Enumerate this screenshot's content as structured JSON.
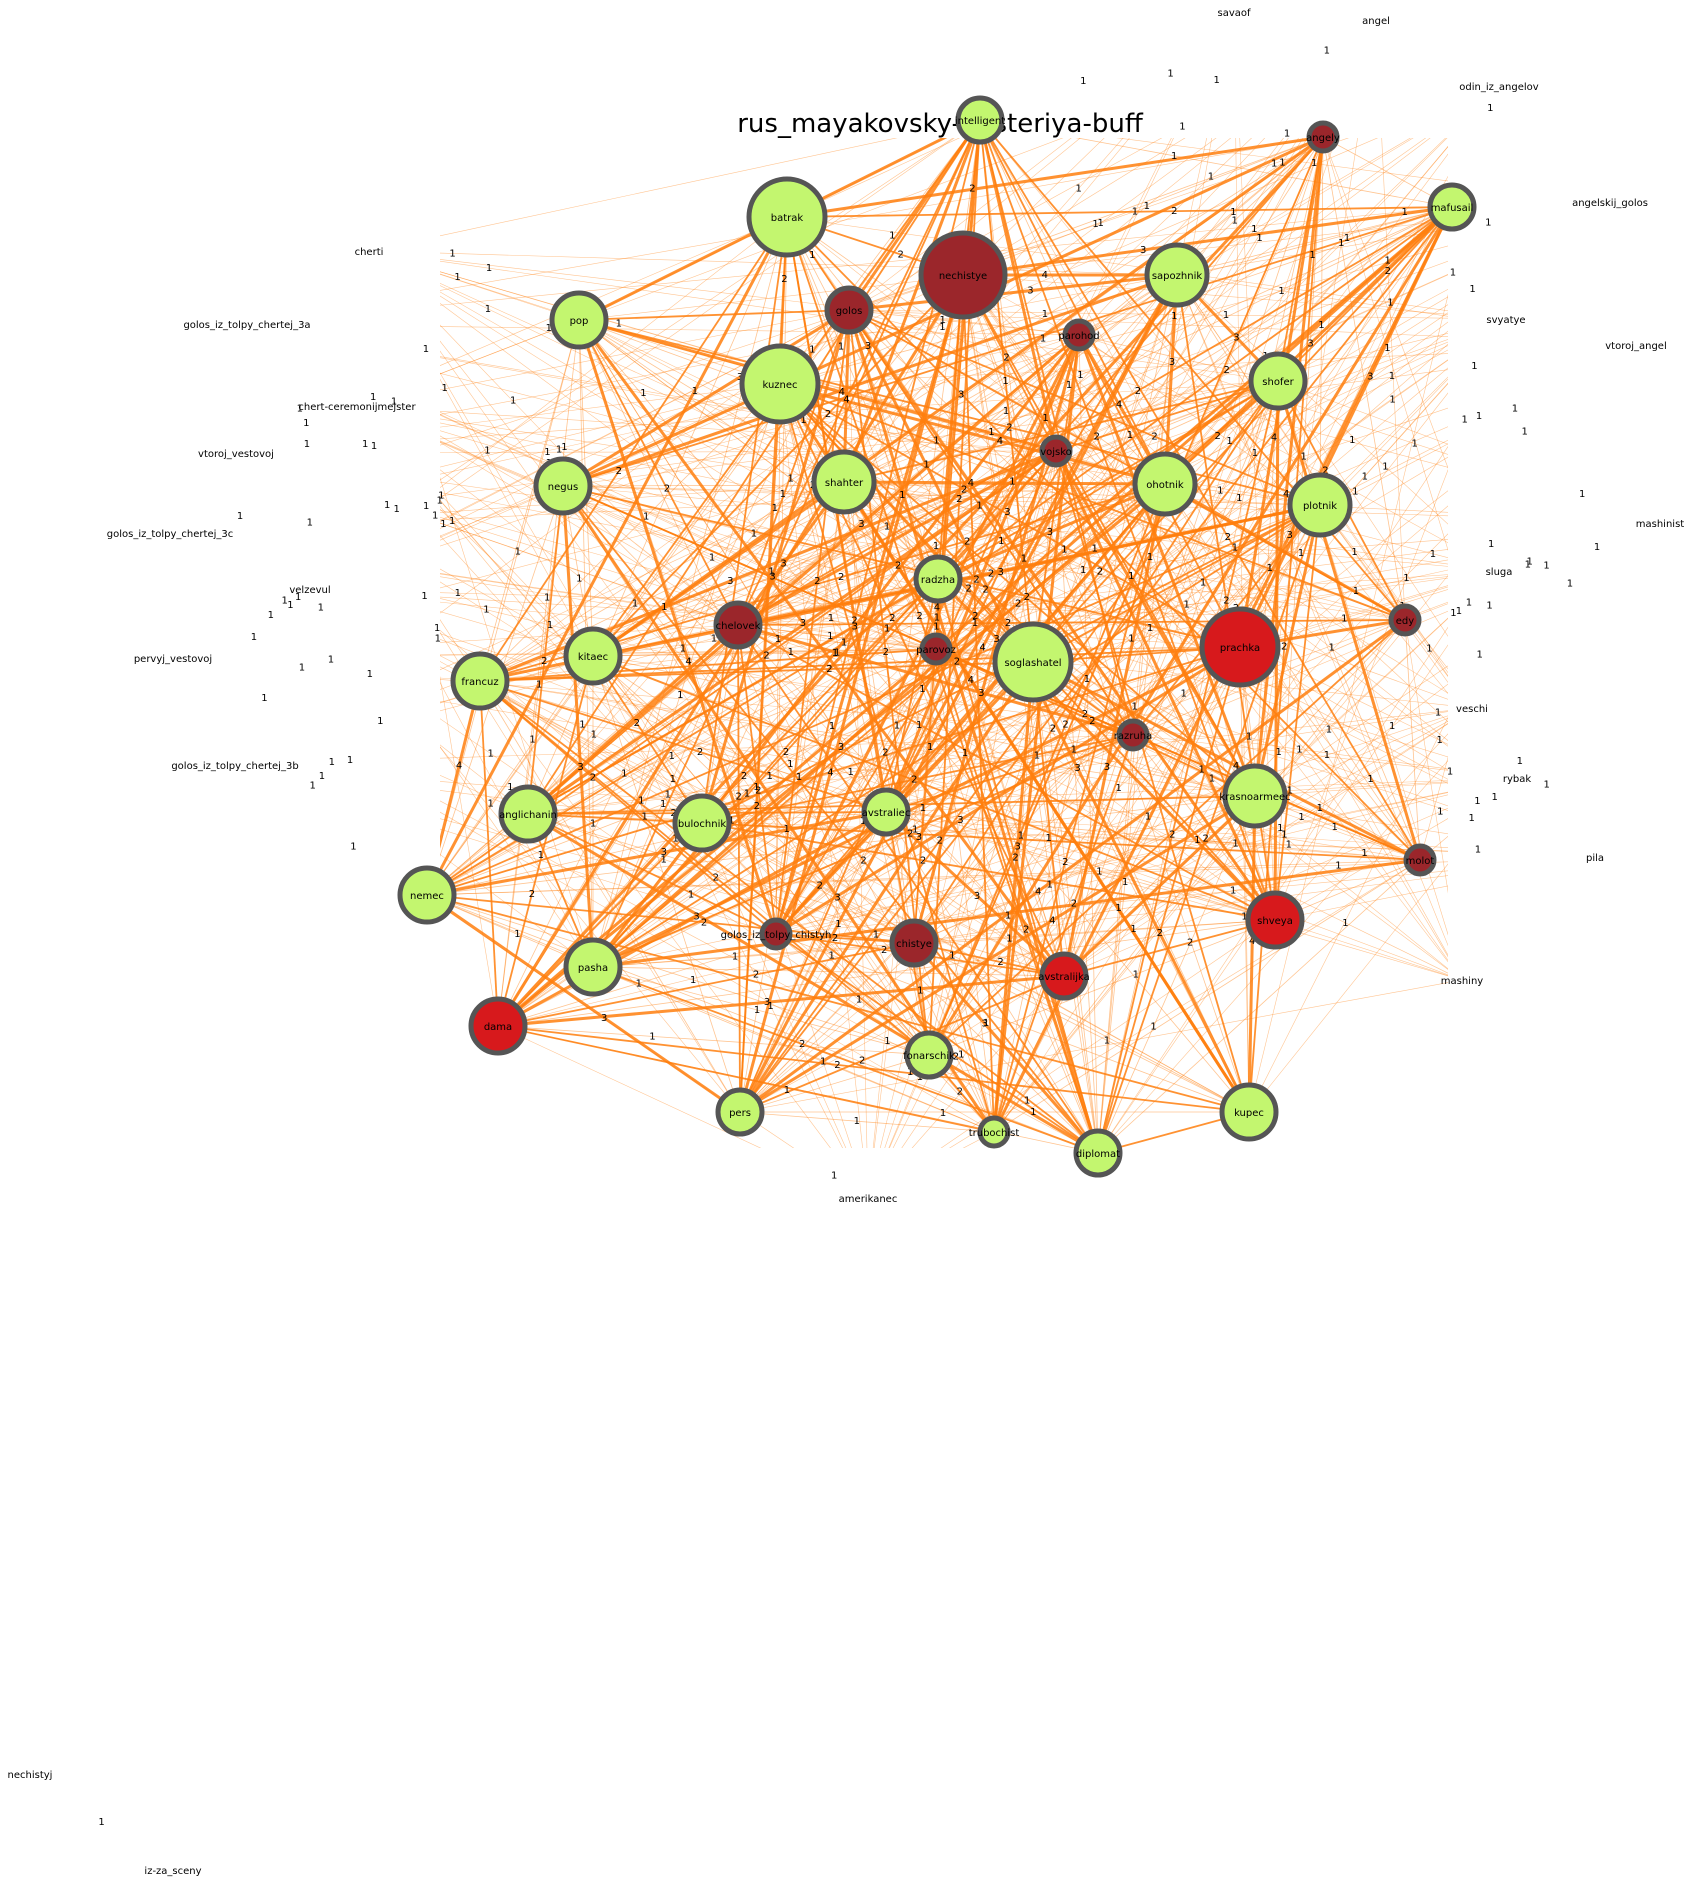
{
  "title": "rus_mayakovsky-misteriya-buff",
  "colors": {
    "edge": "#ff7f0e",
    "node_green": "#c3f66f",
    "node_dark_red": "#9b262b",
    "node_red": "#d7191c",
    "node_border": "#555555"
  },
  "nodes": [
    {
      "id": "batrak",
      "label": "batrak",
      "color": "green",
      "size": "xl"
    },
    {
      "id": "nechistye",
      "label": "nechistye",
      "color": "dark_red",
      "size": "xxl"
    },
    {
      "id": "sapozhnik",
      "label": "sapozhnik",
      "color": "green",
      "size": "l"
    },
    {
      "id": "pop",
      "label": "pop",
      "color": "green",
      "size": "m"
    },
    {
      "id": "golos",
      "label": "golos",
      "color": "dark_red",
      "size": "s"
    },
    {
      "id": "parohod",
      "label": "parohod",
      "color": "dark_red",
      "size": "xs"
    },
    {
      "id": "kuznec",
      "label": "kuznec",
      "color": "green",
      "size": "xl"
    },
    {
      "id": "shofer",
      "label": "shofer",
      "color": "green",
      "size": "m"
    },
    {
      "id": "vojsko",
      "label": "vojsko",
      "color": "dark_red",
      "size": "xs"
    },
    {
      "id": "negus",
      "label": "negus",
      "color": "green",
      "size": "m"
    },
    {
      "id": "shahter",
      "label": "shahter",
      "color": "green",
      "size": "l"
    },
    {
      "id": "ohotnik",
      "label": "ohotnik",
      "color": "green",
      "size": "l"
    },
    {
      "id": "plotnik",
      "label": "plotnik",
      "color": "green",
      "size": "l"
    },
    {
      "id": "radzha",
      "label": "radzha",
      "color": "green",
      "size": "s"
    },
    {
      "id": "chelovek",
      "label": "chelovek",
      "color": "dark_red",
      "size": "s"
    },
    {
      "id": "edy",
      "label": "edy",
      "color": "dark_red",
      "size": "xs"
    },
    {
      "id": "kitaec",
      "label": "kitaec",
      "color": "green",
      "size": "m"
    },
    {
      "id": "parovoz",
      "label": "parovoz",
      "color": "dark_red",
      "size": "xs"
    },
    {
      "id": "soglashatel",
      "label": "soglashatel",
      "color": "green",
      "size": "xl"
    },
    {
      "id": "prachka",
      "label": "prachka",
      "color": "red",
      "size": "xl"
    },
    {
      "id": "francuz",
      "label": "francuz",
      "color": "green",
      "size": "m"
    },
    {
      "id": "razruha",
      "label": "razruha",
      "color": "dark_red",
      "size": "xs"
    },
    {
      "id": "krasnoarmeec",
      "label": "krasnoarmeec",
      "color": "green",
      "size": "l"
    },
    {
      "id": "anglichanin",
      "label": "anglichanin",
      "color": "green",
      "size": "m"
    },
    {
      "id": "bulochnik",
      "label": "bulochnik",
      "color": "green",
      "size": "m"
    },
    {
      "id": "avstraliec",
      "label": "avstraliec",
      "color": "green",
      "size": "s"
    },
    {
      "id": "molot",
      "label": "molot",
      "color": "dark_red",
      "size": "xs"
    },
    {
      "id": "nemec",
      "label": "nemec",
      "color": "green",
      "size": "m"
    },
    {
      "id": "shveya",
      "label": "shveya",
      "color": "red",
      "size": "m"
    },
    {
      "id": "golos_iz_tolpy_chistyh",
      "label": "golos_iz_tolpy_chistyh",
      "color": "dark_red",
      "size": "xs"
    },
    {
      "id": "chistye",
      "label": "chistye",
      "color": "dark_red",
      "size": "s"
    },
    {
      "id": "pasha",
      "label": "pasha",
      "color": "green",
      "size": "m"
    },
    {
      "id": "avstralijka",
      "label": "avstralijka",
      "color": "red",
      "size": "s"
    },
    {
      "id": "dama",
      "label": "dama",
      "color": "red",
      "size": "m"
    },
    {
      "id": "fonarschik",
      "label": "fonarschik",
      "color": "green",
      "size": "s"
    },
    {
      "id": "pers",
      "label": "pers",
      "color": "green",
      "size": "s"
    },
    {
      "id": "trubochist",
      "label": "trubochist",
      "color": "green",
      "size": "xs"
    },
    {
      "id": "diplomat",
      "label": "diplomat",
      "color": "green",
      "size": "s"
    },
    {
      "id": "kupec",
      "label": "kupec",
      "color": "green",
      "size": "m"
    },
    {
      "id": "intelligent",
      "label": "intelligent",
      "color": "green",
      "size": "s"
    },
    {
      "id": "angely",
      "label": "angely",
      "color": "dark_red",
      "size": "xs"
    },
    {
      "id": "mafusail",
      "label": "mafusail",
      "color": "green",
      "size": "s"
    }
  ],
  "outer_labels": [
    {
      "id": "savaof",
      "label": "savaof"
    },
    {
      "id": "angel",
      "label": "angel"
    },
    {
      "id": "odin_iz_angelov",
      "label": "odin_iz_angelov"
    },
    {
      "id": "angelskij_golos",
      "label": "angelskij_golos"
    },
    {
      "id": "svyatye",
      "label": "svyatye"
    },
    {
      "id": "vtoroj_angel",
      "label": "vtoroj_angel"
    },
    {
      "id": "mashinist",
      "label": "mashinist"
    },
    {
      "id": "sluga",
      "label": "sluga"
    },
    {
      "id": "veschi",
      "label": "veschi"
    },
    {
      "id": "rybak",
      "label": "rybak"
    },
    {
      "id": "pila",
      "label": "pila"
    },
    {
      "id": "mashiny",
      "label": "mashiny"
    },
    {
      "id": "cherti",
      "label": "cherti"
    },
    {
      "id": "golos_iz_tolpy_chertej_3a",
      "label": "golos_iz_tolpy_chertej_3a"
    },
    {
      "id": "chert-ceremonijmejster",
      "label": "chert-ceremonijmejster"
    },
    {
      "id": "vtoroj_vestovoj",
      "label": "vtoroj_vestovoj"
    },
    {
      "id": "golos_iz_tolpy_chertej_3c",
      "label": "golos_iz_tolpy_chertej_3c"
    },
    {
      "id": "velzevul",
      "label": "velzevul"
    },
    {
      "id": "pervyj_vestovoj",
      "label": "pervyj_vestovoj"
    },
    {
      "id": "golos_iz_tolpy_chertej_3b",
      "label": "golos_iz_tolpy_chertej_3b"
    },
    {
      "id": "amerikanec",
      "label": "amerikanec"
    },
    {
      "id": "nechistyj",
      "label": "nechistyj"
    },
    {
      "id": "iz-za_sceny",
      "label": "iz-za_sceny"
    }
  ],
  "isolated_edges": [
    {
      "source": "nechistyj",
      "target": "iz-za_sceny",
      "weight": 1
    }
  ]
}
